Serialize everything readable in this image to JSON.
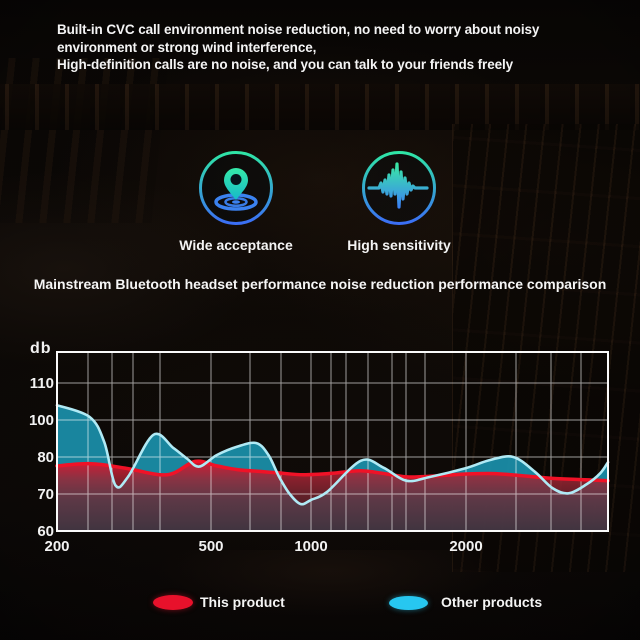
{
  "header": {
    "lines": [
      "Built-in CVC call environment noise reduction, no need to worry about noisy",
      "environment or strong wind interference,",
      "High-definition calls are no noise, and you can talk to your friends freely"
    ]
  },
  "features": [
    {
      "icon": "location-pin-ripple-icon",
      "label": "Wide acceptance"
    },
    {
      "icon": "sound-wave-icon",
      "label": "High sensitivity"
    }
  ],
  "section_title": "Mainstream Bluetooth headset performance noise reduction performance comparison",
  "chart_data": {
    "type": "area",
    "title": "Mainstream Bluetooth headset performance noise reduction performance comparison",
    "ylabel": "db",
    "y_ticks": [
      110,
      100,
      80,
      70,
      60
    ],
    "x_ticks": [
      200,
      500,
      1000,
      2000
    ],
    "x_range": [
      200,
      4000
    ],
    "y_axis_unit": "db",
    "grid": true,
    "legend_position": "bottom",
    "colors": {
      "this_product": "#e8112b",
      "other_products": "#27c7f0",
      "grid": "#ffffff"
    },
    "series": [
      {
        "name": "This product",
        "color": "#e8112b",
        "points": [
          [
            200,
            77.6
          ],
          [
            245,
            78.2
          ],
          [
            300,
            77.0
          ],
          [
            385,
            75.2
          ],
          [
            455,
            78.8
          ],
          [
            520,
            77.6
          ],
          [
            600,
            76.6
          ],
          [
            700,
            76.1
          ],
          [
            800,
            75.7
          ],
          [
            950,
            75.2
          ],
          [
            1100,
            75.6
          ],
          [
            1250,
            76.3
          ],
          [
            1420,
            75.3
          ],
          [
            1550,
            74.6
          ],
          [
            1800,
            75.0
          ],
          [
            2000,
            75.4
          ],
          [
            2300,
            75.5
          ],
          [
            2600,
            75.0
          ],
          [
            3000,
            74.3
          ],
          [
            3500,
            73.9
          ],
          [
            4000,
            73.6
          ]
        ]
      },
      {
        "name": "Other products",
        "color": "#27c7f0",
        "points": [
          [
            200,
            104
          ],
          [
            243,
            100.8
          ],
          [
            265,
            88
          ],
          [
            283,
            72.4
          ],
          [
            305,
            74.6
          ],
          [
            355,
            92
          ],
          [
            400,
            84.8
          ],
          [
            433,
            79.6
          ],
          [
            466,
            77.4
          ],
          [
            520,
            81
          ],
          [
            600,
            85.6
          ],
          [
            685,
            87.5
          ],
          [
            745,
            81
          ],
          [
            800,
            74.8
          ],
          [
            860,
            70.2
          ],
          [
            930,
            67.3
          ],
          [
            1000,
            68.4
          ],
          [
            1075,
            70.6
          ],
          [
            1250,
            79
          ],
          [
            1380,
            77.2
          ],
          [
            1530,
            73.6
          ],
          [
            1700,
            74.6
          ],
          [
            2000,
            77
          ],
          [
            2250,
            79.2
          ],
          [
            2520,
            80
          ],
          [
            2800,
            76
          ],
          [
            3050,
            71.6
          ],
          [
            3300,
            70.2
          ],
          [
            3600,
            72.6
          ],
          [
            3850,
            75.6
          ],
          [
            4000,
            78.6
          ]
        ]
      }
    ]
  },
  "legend": [
    {
      "swatch": "red-ellipse",
      "label": "This product"
    },
    {
      "swatch": "cyan-ellipse",
      "label": "Other products"
    }
  ]
}
